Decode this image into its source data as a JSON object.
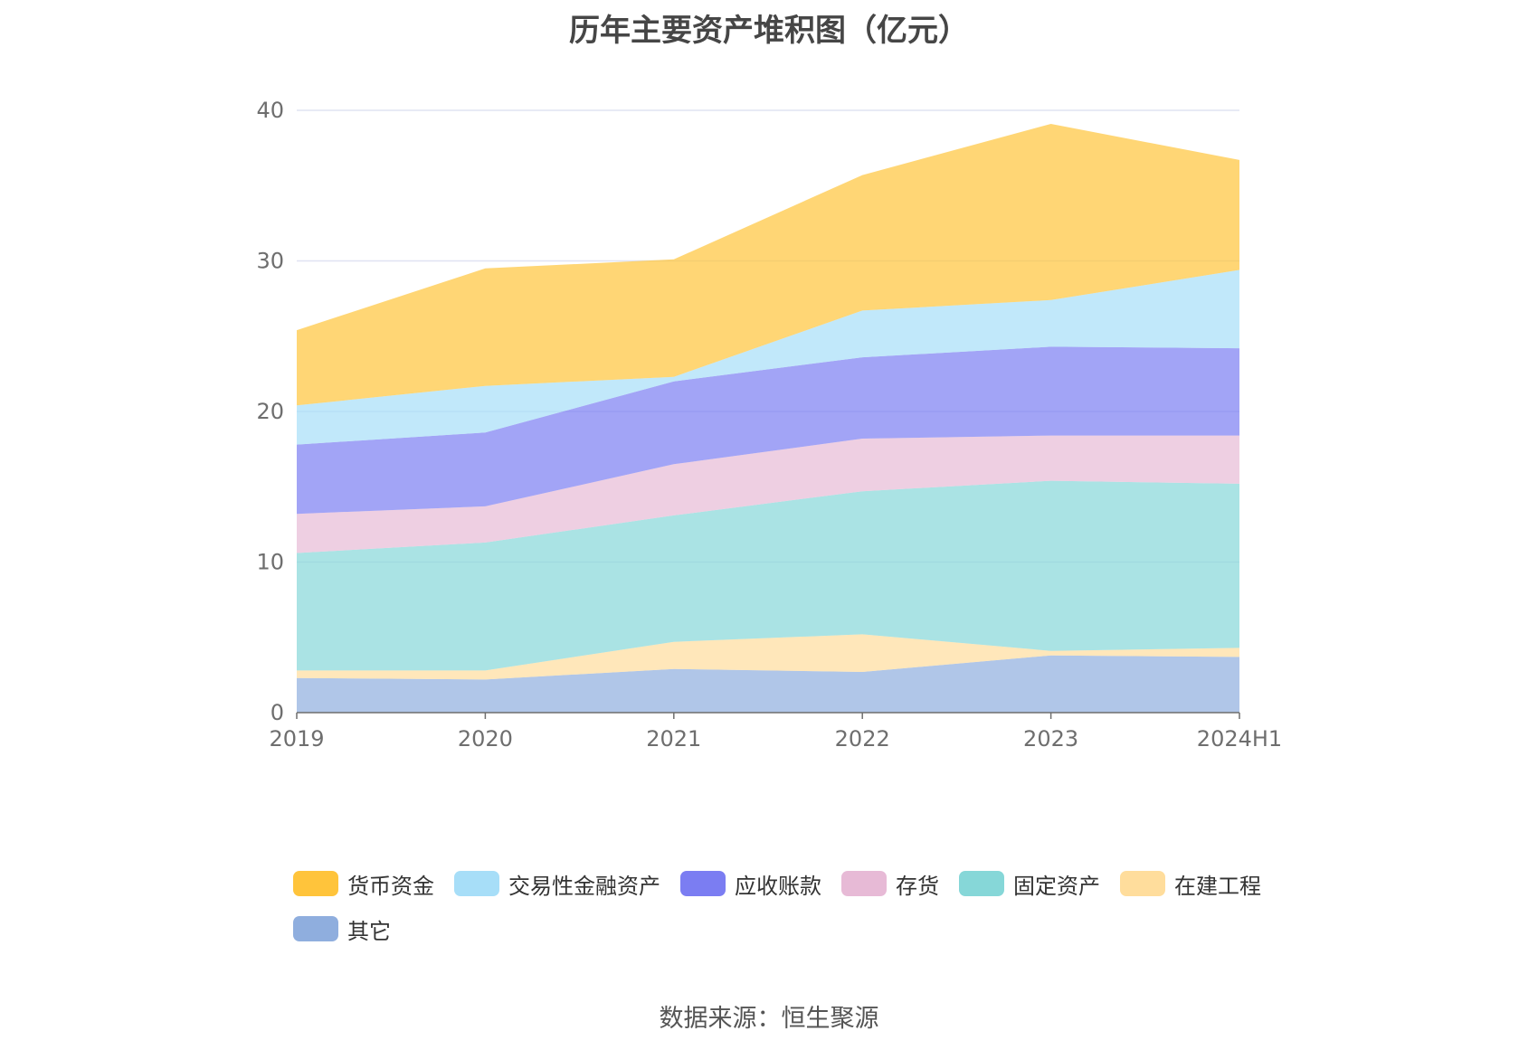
{
  "chart_data": {
    "type": "area",
    "stacked": true,
    "title": "历年主要资产堆积图（亿元）",
    "categories": [
      "2019",
      "2020",
      "2021",
      "2022",
      "2023",
      "2024H1"
    ],
    "ylim": [
      0,
      40
    ],
    "yticks": [
      0,
      10,
      20,
      30,
      40
    ],
    "grid": true,
    "legend_position": "bottom",
    "series": [
      {
        "name": "其它",
        "color": "#8faede",
        "values": [
          2.3,
          2.2,
          2.9,
          2.7,
          3.8,
          3.7
        ]
      },
      {
        "name": "在建工程",
        "color": "#ffdd9c",
        "values": [
          0.5,
          0.6,
          1.8,
          2.5,
          0.3,
          0.6
        ]
      },
      {
        "name": "固定资产",
        "color": "#86d7d8",
        "values": [
          7.8,
          8.5,
          8.4,
          9.5,
          11.3,
          10.9
        ]
      },
      {
        "name": "存货",
        "color": "#e7bad6",
        "values": [
          2.6,
          2.4,
          3.4,
          3.5,
          3.0,
          3.2
        ]
      },
      {
        "name": "应收账款",
        "color": "#7b7df2",
        "values": [
          4.6,
          4.9,
          5.5,
          5.4,
          5.9,
          5.8
        ]
      },
      {
        "name": "交易性金融资产",
        "color": "#a7def8",
        "values": [
          2.6,
          3.1,
          0.3,
          3.1,
          3.1,
          5.2
        ]
      },
      {
        "name": "货币资金",
        "color": "#ffc43b",
        "values": [
          5.0,
          7.8,
          7.8,
          9.0,
          11.7,
          7.3
        ]
      }
    ]
  },
  "legend": [
    {
      "name": "货币资金",
      "color": "#ffc43b"
    },
    {
      "name": "交易性金融资产",
      "color": "#a7def8"
    },
    {
      "name": "应收账款",
      "color": "#7b7df2"
    },
    {
      "name": "存货",
      "color": "#e7bad6"
    },
    {
      "name": "固定资产",
      "color": "#86d7d8"
    },
    {
      "name": "在建工程",
      "color": "#ffdd9c"
    },
    {
      "name": "其它",
      "color": "#8faede"
    }
  ],
  "source": "数据来源：恒生聚源"
}
